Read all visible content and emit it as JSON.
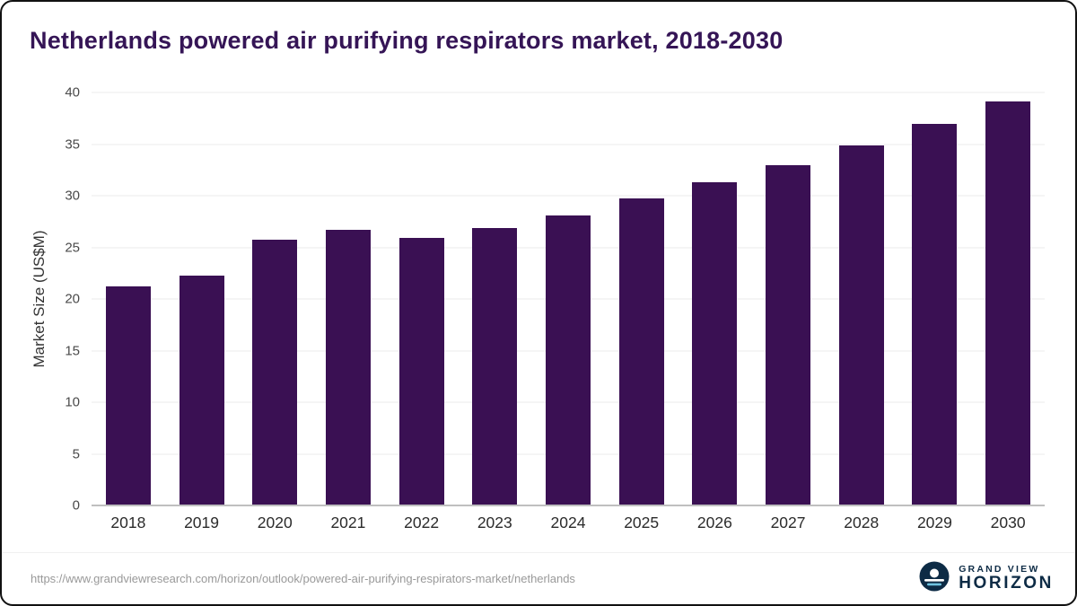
{
  "chart_data": {
    "type": "bar",
    "title": "Netherlands powered air purifying respirators market, 2018-2030",
    "categories": [
      "2018",
      "2019",
      "2020",
      "2021",
      "2022",
      "2023",
      "2024",
      "2025",
      "2026",
      "2027",
      "2028",
      "2029",
      "2030"
    ],
    "values": [
      21.2,
      22.3,
      25.7,
      26.7,
      25.9,
      26.9,
      28.1,
      29.7,
      31.3,
      33.0,
      34.9,
      37.0,
      39.1
    ],
    "xlabel": "",
    "ylabel": "Market Size (US$M)",
    "ylim": [
      0,
      40
    ],
    "yticks": [
      0,
      5,
      10,
      15,
      20,
      25,
      30,
      35,
      40
    ],
    "grid": "horizontal",
    "legend": "none",
    "bar_color": "#3a1053"
  },
  "footer": {
    "source_url": "https://www.grandviewresearch.com/horizon/outlook/powered-air-purifying-respirators-market/netherlands",
    "logo": {
      "line1": "GRAND VIEW",
      "line2": "HORIZON"
    }
  },
  "colors": {
    "title": "#351556",
    "bar": "#3a1053",
    "gridline": "#ebebeb",
    "axis_line": "#bfbfbf",
    "logo_navy": "#0d2b45",
    "logo_light_blue": "#6fc3e0"
  }
}
